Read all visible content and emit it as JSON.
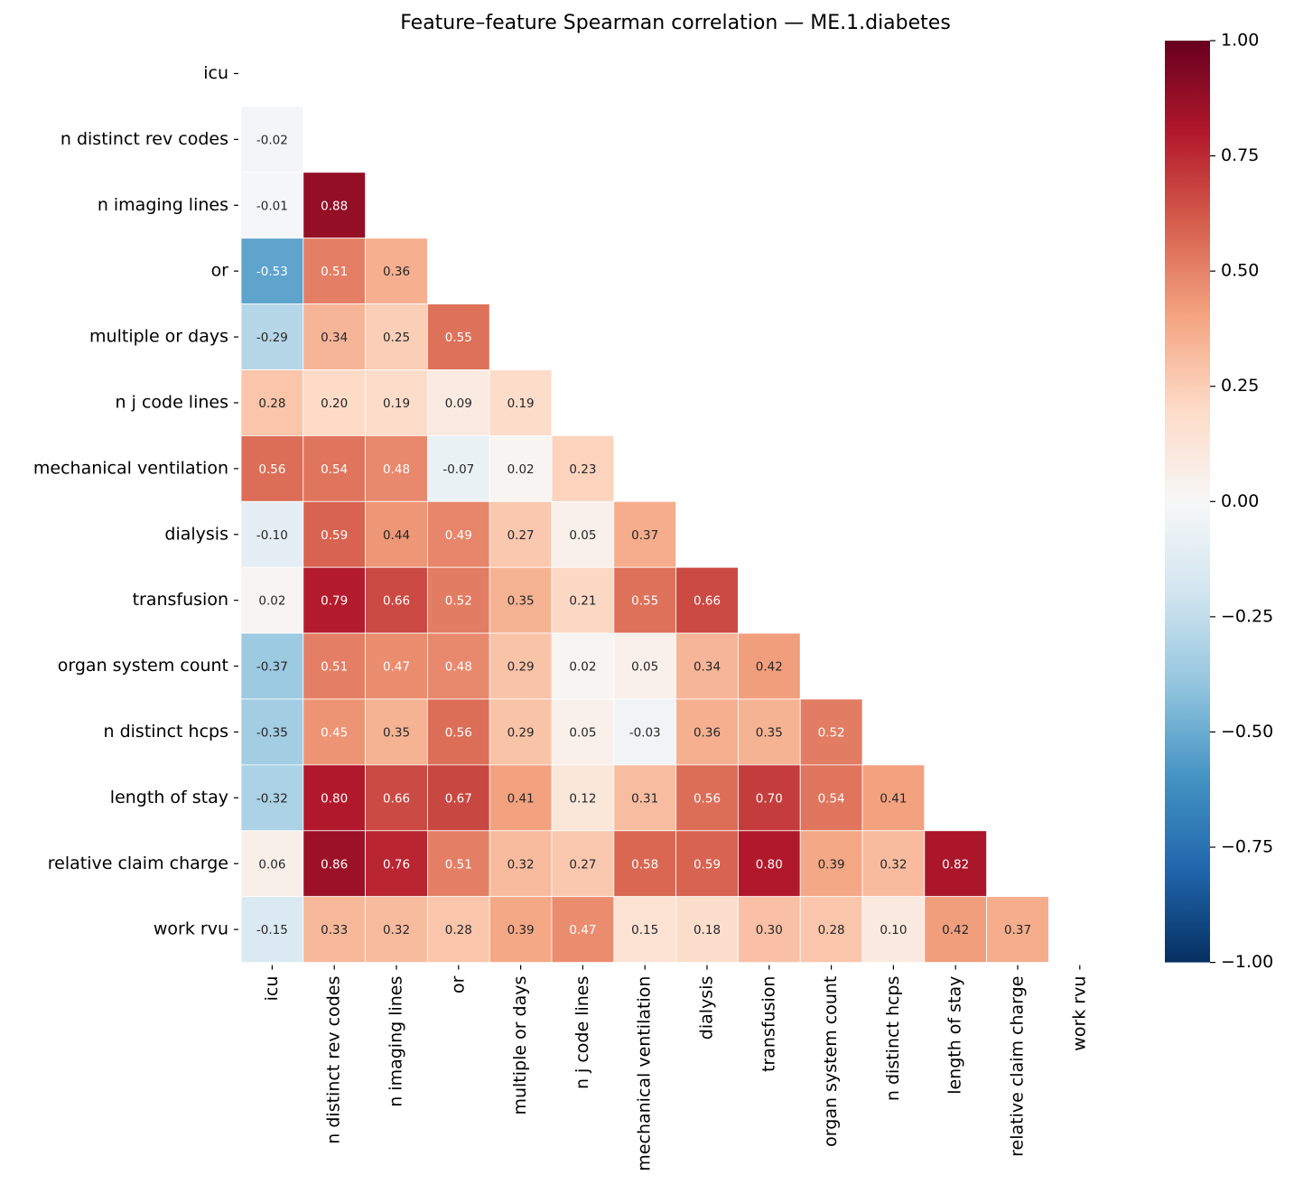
{
  "chart_data": {
    "type": "heatmap",
    "title": "Feature–feature Spearman correlation — ME.1.diabetes",
    "categories": [
      "icu",
      "n distinct rev codes",
      "n imaging lines",
      "or",
      "multiple or days",
      "n j code lines",
      "mechanical ventilation",
      "dialysis",
      "transfusion",
      "organ system count",
      "n distinct hcps",
      "length of stay",
      "relative claim charge",
      "work rvu"
    ],
    "values": [
      [
        null,
        null,
        null,
        null,
        null,
        null,
        null,
        null,
        null,
        null,
        null,
        null,
        null,
        null
      ],
      [
        -0.02,
        null,
        null,
        null,
        null,
        null,
        null,
        null,
        null,
        null,
        null,
        null,
        null,
        null
      ],
      [
        -0.01,
        0.88,
        null,
        null,
        null,
        null,
        null,
        null,
        null,
        null,
        null,
        null,
        null,
        null
      ],
      [
        -0.53,
        0.51,
        0.36,
        null,
        null,
        null,
        null,
        null,
        null,
        null,
        null,
        null,
        null,
        null
      ],
      [
        -0.29,
        0.34,
        0.25,
        0.55,
        null,
        null,
        null,
        null,
        null,
        null,
        null,
        null,
        null,
        null
      ],
      [
        0.28,
        0.2,
        0.19,
        0.09,
        0.19,
        null,
        null,
        null,
        null,
        null,
        null,
        null,
        null,
        null
      ],
      [
        0.56,
        0.54,
        0.48,
        -0.07,
        0.02,
        0.23,
        null,
        null,
        null,
        null,
        null,
        null,
        null,
        null
      ],
      [
        -0.1,
        0.59,
        0.44,
        0.49,
        0.27,
        0.05,
        0.37,
        null,
        null,
        null,
        null,
        null,
        null,
        null
      ],
      [
        0.02,
        0.79,
        0.66,
        0.52,
        0.35,
        0.21,
        0.55,
        0.66,
        null,
        null,
        null,
        null,
        null,
        null
      ],
      [
        -0.37,
        0.51,
        0.47,
        0.48,
        0.29,
        0.02,
        0.05,
        0.34,
        0.42,
        null,
        null,
        null,
        null,
        null
      ],
      [
        -0.35,
        0.45,
        0.35,
        0.56,
        0.29,
        0.05,
        -0.03,
        0.36,
        0.35,
        0.52,
        null,
        null,
        null,
        null
      ],
      [
        -0.32,
        0.8,
        0.66,
        0.67,
        0.41,
        0.12,
        0.31,
        0.56,
        0.7,
        0.54,
        0.41,
        null,
        null,
        null
      ],
      [
        0.06,
        0.86,
        0.76,
        0.51,
        0.32,
        0.27,
        0.58,
        0.59,
        0.8,
        0.39,
        0.32,
        0.82,
        null,
        null
      ],
      [
        -0.15,
        0.33,
        0.32,
        0.28,
        0.39,
        0.47,
        0.15,
        0.18,
        0.3,
        0.28,
        0.1,
        0.42,
        0.37,
        null
      ]
    ],
    "value_labels": [
      [
        null,
        null,
        null,
        null,
        null,
        null,
        null,
        null,
        null,
        null,
        null,
        null,
        null,
        null
      ],
      [
        "-0.02",
        null,
        null,
        null,
        null,
        null,
        null,
        null,
        null,
        null,
        null,
        null,
        null,
        null
      ],
      [
        "-0.01",
        "0.88",
        null,
        null,
        null,
        null,
        null,
        null,
        null,
        null,
        null,
        null,
        null,
        null
      ],
      [
        "-0.53",
        "0.51",
        "0.36",
        null,
        null,
        null,
        null,
        null,
        null,
        null,
        null,
        null,
        null,
        null
      ],
      [
        "-0.29",
        "0.34",
        "0.25",
        "0.55",
        null,
        null,
        null,
        null,
        null,
        null,
        null,
        null,
        null,
        null
      ],
      [
        "0.28",
        "0.20",
        "0.19",
        "0.09",
        "0.19",
        null,
        null,
        null,
        null,
        null,
        null,
        null,
        null,
        null
      ],
      [
        "0.56",
        "0.54",
        "0.48",
        "-0.07",
        "0.02",
        "0.23",
        null,
        null,
        null,
        null,
        null,
        null,
        null,
        null
      ],
      [
        "-0.10",
        "0.59",
        "0.44",
        "0.49",
        "0.27",
        "0.05",
        "0.37",
        null,
        null,
        null,
        null,
        null,
        null,
        null
      ],
      [
        "0.02",
        "0.79",
        "0.66",
        "0.52",
        "0.35",
        "0.21",
        "0.55",
        "0.66",
        null,
        null,
        null,
        null,
        null,
        null
      ],
      [
        "-0.37",
        "0.51",
        "0.47",
        "0.48",
        "0.29",
        "0.02",
        "0.05",
        "0.34",
        "0.42",
        null,
        null,
        null,
        null,
        null
      ],
      [
        "-0.35",
        "0.45",
        "0.35",
        "0.56",
        "0.29",
        "0.05",
        "-0.03",
        "0.36",
        "0.35",
        "0.52",
        null,
        null,
        null,
        null
      ],
      [
        "-0.32",
        "0.80",
        "0.66",
        "0.67",
        "0.41",
        "0.12",
        "0.31",
        "0.56",
        "0.70",
        "0.54",
        "0.41",
        null,
        null,
        null
      ],
      [
        "0.06",
        "0.86",
        "0.76",
        "0.51",
        "0.32",
        "0.27",
        "0.58",
        "0.59",
        "0.80",
        "0.39",
        "0.32",
        "0.82",
        null,
        null
      ],
      [
        "-0.15",
        "0.33",
        "0.32",
        "0.28",
        "0.39",
        "0.47",
        "0.15",
        "0.18",
        "0.30",
        "0.28",
        "0.10",
        "0.42",
        "0.37",
        null
      ]
    ],
    "zlim": [
      -1,
      1
    ],
    "zticks": [
      {
        "value": 1,
        "label": "1.00"
      },
      {
        "value": 0.75,
        "label": "0.75"
      },
      {
        "value": 0.5,
        "label": "0.50"
      },
      {
        "value": 0.25,
        "label": "0.25"
      },
      {
        "value": 0,
        "label": "0.00"
      },
      {
        "value": -0.25,
        "label": "−0.25"
      },
      {
        "value": -0.5,
        "label": "−0.50"
      },
      {
        "value": -0.75,
        "label": "−0.75"
      },
      {
        "value": -1,
        "label": "−1.00"
      }
    ],
    "colormap": [
      "#053061",
      "#2166ac",
      "#4393c3",
      "#92c5de",
      "#d1e5f0",
      "#f7f7f7",
      "#fddbc7",
      "#f4a582",
      "#d6604d",
      "#b2182b",
      "#67001f"
    ]
  }
}
